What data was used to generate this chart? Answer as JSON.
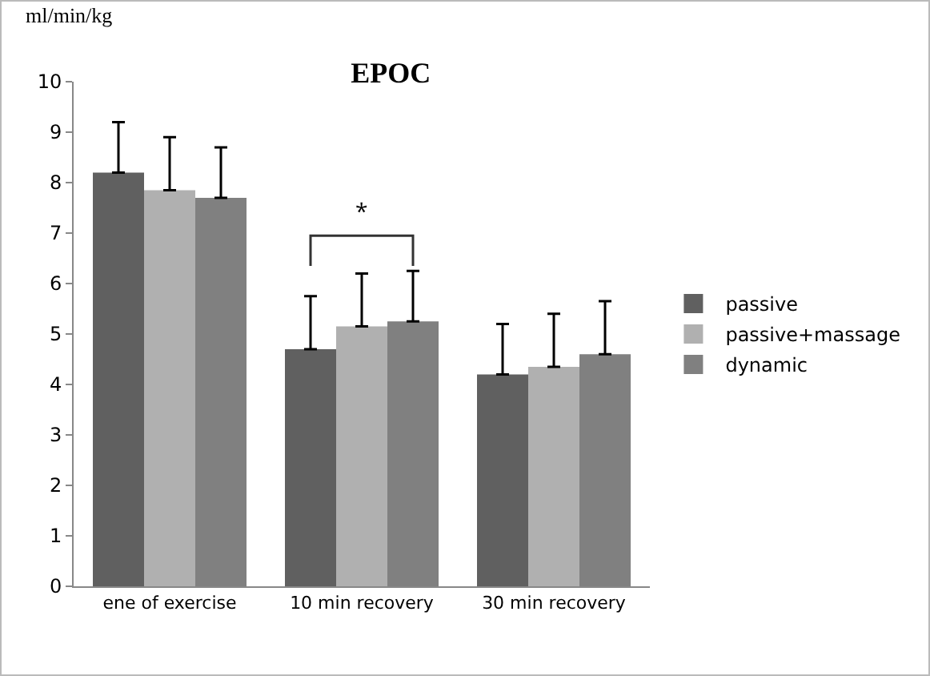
{
  "chart_data": {
    "type": "bar",
    "title": "EPOC",
    "ylabel": "ml/min/kg",
    "categories": [
      "ene of exercise",
      "10 min recovery",
      "30 min recovery"
    ],
    "series": [
      {
        "name": "passive",
        "color": "#606060",
        "values": [
          8.2,
          4.7,
          4.2
        ],
        "errors": [
          [
            8.2,
            9.2
          ],
          [
            4.7,
            5.75
          ],
          [
            4.2,
            5.2
          ]
        ]
      },
      {
        "name": "passive+massage",
        "color": "#b0b0b0",
        "values": [
          7.85,
          5.15,
          4.35
        ],
        "errors": [
          [
            7.85,
            8.9
          ],
          [
            5.15,
            6.2
          ],
          [
            4.35,
            5.4
          ]
        ]
      },
      {
        "name": "dynamic",
        "color": "#808080",
        "values": [
          7.7,
          5.25,
          4.6
        ],
        "errors": [
          [
            7.7,
            8.7
          ],
          [
            5.25,
            6.25
          ],
          [
            4.6,
            5.65
          ]
        ]
      }
    ],
    "annotations": [
      "*"
    ],
    "ylim": [
      0,
      10
    ],
    "yticks": [
      0,
      1,
      2,
      3,
      4,
      5,
      6,
      7,
      8,
      9,
      10
    ],
    "grid": false,
    "legend": "right"
  }
}
